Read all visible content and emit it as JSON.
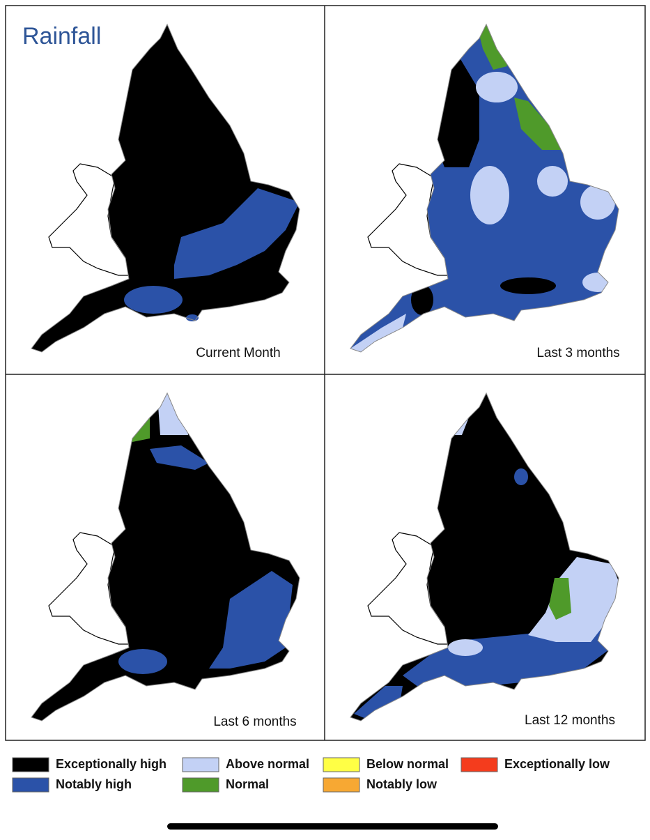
{
  "title": "Rainfall",
  "panels": [
    {
      "label": "Current Month"
    },
    {
      "label": "Last 3 months"
    },
    {
      "label": "Last 6 months"
    },
    {
      "label": "Last 12 months"
    }
  ],
  "legend": [
    {
      "label": "Exceptionally high",
      "color": "#000000"
    },
    {
      "label": "Notably high",
      "color": "#2b52a8"
    },
    {
      "label": "Above normal",
      "color": "#c3d1f5"
    },
    {
      "label": "Normal",
      "color": "#4f9a2a"
    },
    {
      "label": "Below normal",
      "color": "#ffff45"
    },
    {
      "label": "Notably low",
      "color": "#f7a833"
    },
    {
      "label": "Exceptionally low",
      "color": "#f43c1d"
    }
  ]
}
